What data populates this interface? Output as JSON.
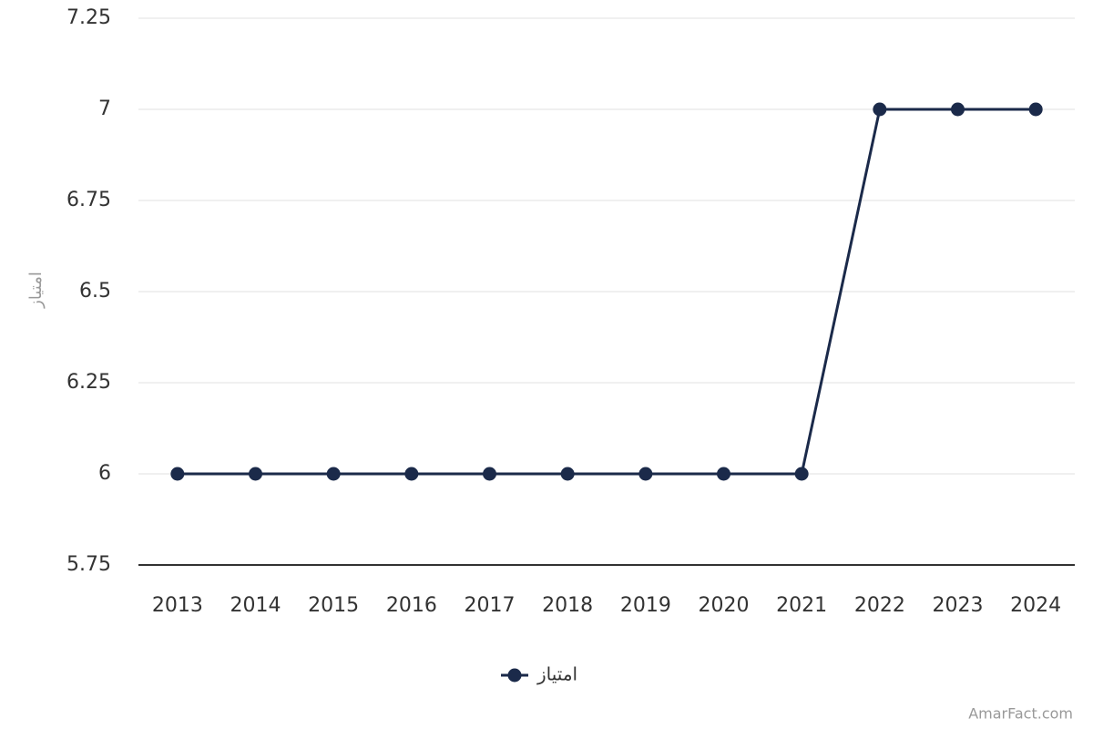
{
  "chart_data": {
    "type": "line",
    "y_label": "امتیاز",
    "categories": [
      "2013",
      "2014",
      "2015",
      "2016",
      "2017",
      "2018",
      "2019",
      "2020",
      "2021",
      "2022",
      "2023",
      "2024"
    ],
    "series": [
      {
        "name": "امتیاز",
        "color": "#1b2a4a",
        "values": [
          6,
          6,
          6,
          6,
          6,
          6,
          6,
          6,
          6,
          7,
          7,
          7
        ]
      }
    ],
    "ylim": [
      5.75,
      7.25
    ],
    "yticks": [
      5.75,
      6,
      6.25,
      6.5,
      6.75,
      7,
      7.25
    ],
    "grid": true,
    "watermark": "AmarFact.com"
  }
}
